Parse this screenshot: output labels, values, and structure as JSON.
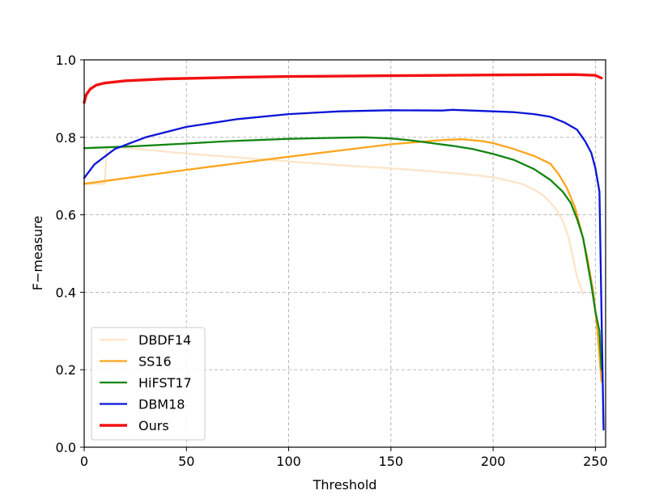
{
  "chart_data": {
    "type": "line",
    "title": "",
    "xlabel": "Threshold",
    "ylabel": "F−measure",
    "xlim": [
      0,
      255
    ],
    "ylim": [
      0.0,
      1.0
    ],
    "xticks": [
      0,
      50,
      100,
      150,
      200,
      250
    ],
    "yticks": [
      0.0,
      0.2,
      0.4,
      0.6,
      0.8,
      1.0
    ],
    "xtick_labels": [
      "0",
      "50",
      "100",
      "150",
      "200",
      "250"
    ],
    "ytick_labels": [
      "0.0",
      "0.2",
      "0.4",
      "0.6",
      "0.8",
      "1.0"
    ],
    "grid": true,
    "legend_position": "lower-left",
    "series": [
      {
        "name": "DBDF14",
        "color": "#fde4c8",
        "x": [
          0,
          5,
          10,
          11,
          15,
          20,
          30,
          50,
          75,
          100,
          125,
          150,
          175,
          190,
          200,
          210,
          215,
          220,
          225,
          230,
          234,
          237,
          239,
          241,
          243,
          244
        ],
        "y": [
          0.68,
          0.68,
          0.68,
          0.775,
          0.775,
          0.772,
          0.768,
          0.758,
          0.748,
          0.738,
          0.728,
          0.72,
          0.71,
          0.703,
          0.697,
          0.685,
          0.678,
          0.665,
          0.648,
          0.62,
          0.585,
          0.54,
          0.49,
          0.44,
          0.41,
          0.395
        ]
      },
      {
        "name": "SS16",
        "color": "#ffa51c",
        "x": [
          0,
          25,
          50,
          75,
          100,
          125,
          150,
          175,
          185,
          195,
          200,
          210,
          220,
          228,
          232,
          236,
          240,
          243,
          246,
          249,
          251,
          253
        ],
        "y": [
          0.68,
          0.698,
          0.716,
          0.733,
          0.75,
          0.766,
          0.782,
          0.793,
          0.795,
          0.79,
          0.785,
          0.77,
          0.752,
          0.732,
          0.705,
          0.67,
          0.62,
          0.56,
          0.49,
          0.4,
          0.3,
          0.17
        ]
      },
      {
        "name": "HiFST17",
        "color": "#138513",
        "x": [
          0,
          25,
          50,
          70,
          100,
          125,
          137,
          150,
          160,
          170,
          180,
          190,
          200,
          210,
          220,
          228,
          234,
          238,
          241,
          244,
          246,
          248,
          250,
          252,
          253
        ],
        "y": [
          0.772,
          0.777,
          0.784,
          0.79,
          0.796,
          0.799,
          0.8,
          0.797,
          0.792,
          0.785,
          0.778,
          0.77,
          0.757,
          0.742,
          0.718,
          0.69,
          0.66,
          0.63,
          0.59,
          0.54,
          0.48,
          0.42,
          0.35,
          0.3,
          0.2
        ]
      },
      {
        "name": "DBM18",
        "color": "#0a14d8",
        "x": [
          0,
          5,
          15,
          30,
          50,
          75,
          100,
          125,
          150,
          175,
          180,
          200,
          210,
          220,
          228,
          235,
          241,
          245,
          248,
          250,
          252,
          253,
          254
        ],
        "y": [
          0.695,
          0.73,
          0.77,
          0.8,
          0.827,
          0.847,
          0.86,
          0.867,
          0.87,
          0.869,
          0.871,
          0.867,
          0.865,
          0.86,
          0.853,
          0.838,
          0.82,
          0.79,
          0.76,
          0.72,
          0.66,
          0.35,
          0.045
        ]
      },
      {
        "name": "Ours",
        "color": "#f21111",
        "x": [
          0,
          1,
          3,
          6,
          10,
          20,
          40,
          75,
          100,
          150,
          200,
          240,
          250,
          253
        ],
        "y": [
          0.89,
          0.91,
          0.925,
          0.935,
          0.94,
          0.946,
          0.951,
          0.955,
          0.957,
          0.959,
          0.961,
          0.962,
          0.96,
          0.953
        ]
      }
    ]
  }
}
